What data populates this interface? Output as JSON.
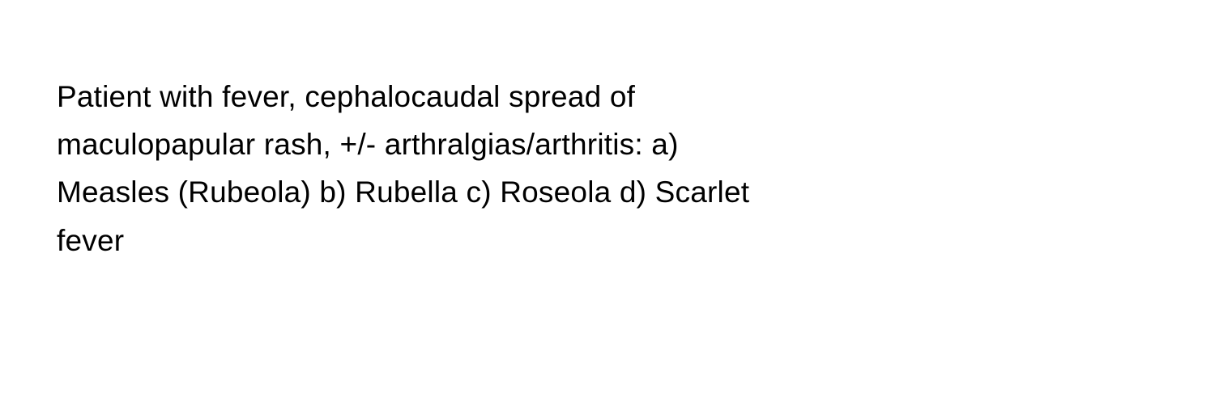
{
  "question": {
    "text": "Patient with fever, cephalocaudal spread of maculopapular rash, +/- arthralgias/arthritis: a) Measles (Rubeola) b) Rubella c) Roseola d) Scarlet fever",
    "text_color": "#000000",
    "background_color": "#ffffff",
    "font_size": 37,
    "line_height": 1.6
  }
}
